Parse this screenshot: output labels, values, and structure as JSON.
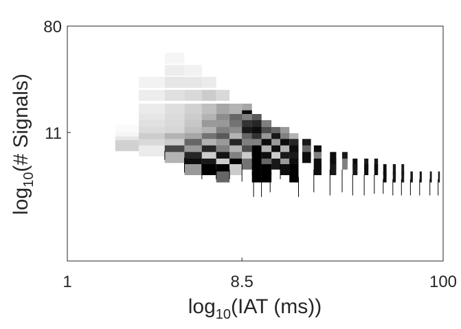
{
  "chart_data": {
    "type": "heatmap",
    "x_scale": "log",
    "y_scale": "log",
    "xlim": [
      1,
      100
    ],
    "ylim": [
      1,
      80
    ],
    "xticks": [
      {
        "value": 1,
        "label": "1"
      },
      {
        "value": 8.5,
        "label": "8.5"
      },
      {
        "value": 100,
        "label": "100"
      }
    ],
    "yticks": [
      {
        "value": 11,
        "label": "11"
      },
      {
        "value": 80,
        "label": "80"
      }
    ],
    "xlabel_main": "log",
    "xlabel_sub": "10",
    "xlabel_rest": "(IAT (ms))",
    "ylabel_main": "log",
    "ylabel_sub": "10",
    "ylabel_rest": "(# Signals)",
    "colormap": "gray-reversed",
    "color_min": "#ffffff",
    "color_max": "#000000",
    "grid": false,
    "legend": "none",
    "columns": [
      {
        "x": [
          1.8,
          2.4
        ],
        "cells": [
          [
            11.5,
            0.02
          ],
          [
            10.0,
            0.04
          ],
          [
            9.2,
            0.1
          ],
          [
            8.6,
            0.18
          ]
        ]
      },
      {
        "x": [
          2.4,
          3.3
        ],
        "cells": [
          [
            28,
            0.05
          ],
          [
            22,
            0.07
          ],
          [
            17,
            0.08
          ],
          [
            14,
            0.1
          ],
          [
            12.5,
            0.12
          ],
          [
            11,
            0.14
          ],
          [
            9.8,
            0.2
          ],
          [
            8.8,
            0.15
          ],
          [
            7.8,
            0.08
          ]
        ]
      },
      {
        "x": [
          3.3,
          4.2
        ],
        "cells": [
          [
            44,
            0.04
          ],
          [
            35,
            0.07
          ],
          [
            28,
            0.1
          ],
          [
            22,
            0.12
          ],
          [
            17,
            0.13
          ],
          [
            14,
            0.14
          ],
          [
            12.5,
            0.15
          ],
          [
            11,
            0.16
          ],
          [
            9.8,
            0.3
          ],
          [
            8.8,
            0.2
          ],
          [
            7.8,
            0.72
          ],
          [
            6.9,
            0.3
          ]
        ]
      },
      {
        "x": [
          4.2,
          5.2
        ],
        "cells": [
          [
            35,
            0.05
          ],
          [
            28,
            0.1
          ],
          [
            22,
            0.15
          ],
          [
            17,
            0.18
          ],
          [
            14,
            0.2
          ],
          [
            12.5,
            0.22
          ],
          [
            11,
            0.25
          ],
          [
            9.8,
            0.35
          ],
          [
            8.8,
            0.6
          ],
          [
            7.8,
            0.4
          ],
          [
            6.9,
            0.85
          ],
          [
            6.1,
            0.95
          ],
          [
            5.5,
            0.4
          ]
        ]
      },
      {
        "x": [
          5.2,
          6.2
        ],
        "cells": [
          [
            28,
            0.08
          ],
          [
            22,
            0.2
          ],
          [
            17,
            0.25
          ],
          [
            14,
            0.3
          ],
          [
            12.5,
            0.4
          ],
          [
            11,
            0.3
          ],
          [
            9.8,
            0.55
          ],
          [
            8.8,
            0.3
          ],
          [
            7.8,
            0.85
          ],
          [
            6.9,
            0.2
          ],
          [
            6.1,
            0.9
          ],
          [
            5.5,
            1.0
          ]
        ]
      },
      {
        "x": [
          6.2,
          7.3
        ],
        "cells": [
          [
            22,
            0.15
          ],
          [
            17,
            0.35
          ],
          [
            14,
            0.45
          ],
          [
            12.5,
            0.4
          ],
          [
            11,
            0.5
          ],
          [
            9.8,
            0.65
          ],
          [
            8.8,
            0.4
          ],
          [
            7.8,
            0.5
          ],
          [
            6.9,
            0.92
          ],
          [
            6.1,
            0.2
          ],
          [
            5.5,
            1.0
          ],
          [
            4.8,
            0.6
          ]
        ]
      },
      {
        "x": [
          7.3,
          8.5
        ],
        "cells": [
          [
            17,
            0.3
          ],
          [
            14,
            0.6
          ],
          [
            12.5,
            0.55
          ],
          [
            11,
            0.45
          ],
          [
            9.8,
            0.3
          ],
          [
            8.8,
            0.85
          ],
          [
            7.8,
            0.3
          ],
          [
            6.9,
            0.5
          ],
          [
            6.1,
            1.0
          ],
          [
            5.5,
            0.2
          ]
        ]
      },
      {
        "x": [
          8.5,
          9.6
        ],
        "cells": [
          [
            17,
            0.35
          ],
          [
            15,
            0.95
          ],
          [
            14,
            0.5
          ],
          [
            12.5,
            0.8
          ],
          [
            11,
            0.9
          ],
          [
            9.8,
            0.6
          ],
          [
            8.8,
            0.5
          ],
          [
            7.8,
            0.7
          ],
          [
            6.9,
            0.2
          ],
          [
            6.1,
            0.55
          ]
        ]
      },
      {
        "x": [
          9.6,
          10.8
        ],
        "cells": [
          [
            14,
            0.65
          ],
          [
            12.5,
            0.85
          ],
          [
            11,
            0.95
          ],
          [
            9.8,
            0.8
          ],
          [
            8.8,
            0.5
          ],
          [
            7.8,
            1.0
          ],
          [
            6.9,
            1.0
          ],
          [
            6.1,
            1.0
          ],
          [
            5.5,
            1.0
          ],
          [
            4.8,
            1.0
          ]
        ]
      },
      {
        "x": [
          10.8,
          12.2
        ],
        "cells": [
          [
            12.5,
            0.5
          ],
          [
            11,
            0.7
          ],
          [
            9.8,
            0.4
          ],
          [
            8.8,
            0.95
          ],
          [
            7.8,
            0.3
          ],
          [
            6.9,
            0.95
          ],
          [
            6.1,
            0.6
          ],
          [
            5.5,
            1.0
          ],
          [
            4.8,
            1.0
          ]
        ]
      },
      {
        "x": [
          12.2,
          13.6
        ],
        "cells": [
          [
            11,
            0.6
          ],
          [
            9.8,
            0.9
          ],
          [
            8.8,
            0.4
          ],
          [
            7.8,
            0.95
          ],
          [
            6.9,
            0.2
          ],
          [
            6.1,
            0.9
          ]
        ]
      },
      {
        "x": [
          13.6,
          15.2
        ],
        "cells": [
          [
            11,
            0.4
          ],
          [
            9.8,
            0.5
          ],
          [
            8.8,
            0.95
          ],
          [
            7.8,
            0.3
          ],
          [
            6.9,
            0.9
          ],
          [
            6.1,
            0.4
          ],
          [
            5.5,
            0.95
          ]
        ]
      },
      {
        "x": [
          15.2,
          17.0
        ],
        "cells": [
          [
            9.8,
            0.3
          ],
          [
            8.8,
            0.85
          ],
          [
            7.8,
            0.95
          ],
          [
            6.9,
            0.9
          ],
          [
            6.1,
            0.95
          ],
          [
            5.5,
            1.0
          ],
          [
            4.8,
            1.0
          ]
        ]
      },
      {
        "x": [
          17.8,
          19.8
        ],
        "cells": [
          [
            8.8,
            0.9
          ],
          [
            7.8,
            0.6
          ],
          [
            6.9,
            0.95
          ]
        ]
      },
      {
        "x": [
          20.5,
          22.5
        ],
        "cells": [
          [
            7.8,
            0.95
          ],
          [
            6.9,
            0.5
          ],
          [
            6.1,
            0.95
          ],
          [
            5.5,
            0.95
          ]
        ]
      },
      {
        "x": [
          25.0,
          27.0
        ],
        "cells": [
          [
            6.9,
            0.95
          ],
          [
            6.1,
            0.95
          ],
          [
            5.5,
            0.9
          ]
        ]
      },
      {
        "x": [
          29.0,
          31.0
        ],
        "cells": [
          [
            6.9,
            0.9
          ],
          [
            6.1,
            0.5
          ]
        ]
      },
      {
        "x": [
          33.0,
          35.0
        ],
        "cells": [
          [
            6.1,
            0.95
          ],
          [
            5.5,
            0.9
          ]
        ]
      },
      {
        "x": [
          38.0,
          40.0
        ],
        "cells": [
          [
            6.1,
            0.9
          ],
          [
            5.5,
            0.95
          ]
        ]
      },
      {
        "x": [
          43.0,
          45.0
        ],
        "cells": [
          [
            6.1,
            0.9
          ],
          [
            5.5,
            0.95
          ]
        ]
      },
      {
        "x": [
          48.0,
          50.0
        ],
        "cells": [
          [
            5.5,
            0.95
          ],
          [
            4.8,
            0.95
          ]
        ]
      },
      {
        "x": [
          54.0,
          56.0
        ],
        "cells": [
          [
            5.5,
            0.9
          ],
          [
            4.8,
            0.9
          ]
        ]
      },
      {
        "x": [
          60.0,
          62.0
        ],
        "cells": [
          [
            5.5,
            0.9
          ],
          [
            4.8,
            0.9
          ]
        ]
      },
      {
        "x": [
          67.0,
          69.0
        ],
        "cells": [
          [
            4.8,
            0.9
          ]
        ]
      },
      {
        "x": [
          75.0,
          77.0
        ],
        "cells": [
          [
            4.8,
            0.9
          ]
        ]
      },
      {
        "x": [
          85.0,
          87.0
        ],
        "cells": [
          [
            4.8,
            0.9
          ]
        ]
      },
      {
        "x": [
          94.0,
          96.0
        ],
        "cells": [
          [
            4.8,
            0.9
          ]
        ]
      }
    ],
    "whiskers": [
      {
        "x": 3.3,
        "y": [
          7.8,
          6.6
        ]
      },
      {
        "x": 4.2,
        "y": [
          6.9,
          5.2
        ]
      },
      {
        "x": 5.2,
        "y": [
          6.1,
          4.6
        ]
      },
      {
        "x": 6.2,
        "y": [
          5.5,
          4.6
        ]
      },
      {
        "x": 7.3,
        "y": [
          5.5,
          4.6
        ]
      },
      {
        "x": 8.5,
        "y": [
          6.1,
          4.4
        ]
      },
      {
        "x": 9.8,
        "y": [
          4.8,
          3.3
        ]
      },
      {
        "x": 10.8,
        "y": [
          4.8,
          3.3
        ]
      },
      {
        "x": 12.0,
        "y": [
          4.8,
          3.6
        ]
      },
      {
        "x": 13.6,
        "y": [
          6.1,
          4.6
        ]
      },
      {
        "x": 17.0,
        "y": [
          4.8,
          3.3
        ]
      },
      {
        "x": 20.5,
        "y": [
          5.5,
          3.6
        ]
      },
      {
        "x": 25.0,
        "y": [
          5.5,
          3.4
        ]
      },
      {
        "x": 29.0,
        "y": [
          5.5,
          3.6
        ]
      },
      {
        "x": 33.0,
        "y": [
          5.0,
          3.4
        ]
      },
      {
        "x": 38.0,
        "y": [
          5.0,
          3.4
        ]
      },
      {
        "x": 43.0,
        "y": [
          5.0,
          3.5
        ]
      },
      {
        "x": 48.0,
        "y": [
          4.6,
          3.5
        ]
      },
      {
        "x": 54.0,
        "y": [
          4.6,
          3.4
        ]
      },
      {
        "x": 60.0,
        "y": [
          4.6,
          3.4
        ]
      },
      {
        "x": 67.0,
        "y": [
          4.6,
          3.4
        ]
      },
      {
        "x": 75.0,
        "y": [
          4.6,
          3.4
        ]
      },
      {
        "x": 85.0,
        "y": [
          4.6,
          3.4
        ]
      },
      {
        "x": 94.0,
        "y": [
          4.6,
          3.4
        ]
      }
    ]
  }
}
